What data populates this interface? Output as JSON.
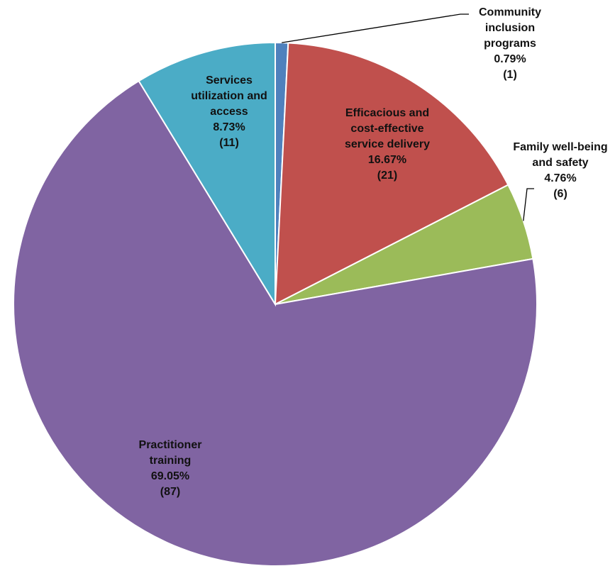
{
  "chart_data": {
    "type": "pie",
    "slices": [
      {
        "name_lines": [
          "Community",
          "inclusion",
          "programs"
        ],
        "percent": 0.79,
        "count": 1,
        "percent_label": "0.79%",
        "count_label": "(1)",
        "color": "#4F81BD"
      },
      {
        "name_lines": [
          "Efficacious and",
          "cost-effective",
          "service delivery"
        ],
        "percent": 16.67,
        "count": 21,
        "percent_label": "16.67%",
        "count_label": "(21)",
        "color": "#C0504D"
      },
      {
        "name_lines": [
          "Family well-being",
          "and safety"
        ],
        "percent": 4.76,
        "count": 6,
        "percent_label": "4.76%",
        "count_label": "(6)",
        "color": "#9BBB59"
      },
      {
        "name_lines": [
          "Practitioner",
          "training"
        ],
        "percent": 69.05,
        "count": 87,
        "percent_label": "69.05%",
        "count_label": "(87)",
        "color": "#8064A2"
      },
      {
        "name_lines": [
          "Services",
          "utilization and",
          "access"
        ],
        "percent": 8.73,
        "count": 11,
        "percent_label": "8.73%",
        "count_label": "(11)",
        "color": "#4BACC6"
      }
    ],
    "legend": "none",
    "start_angle": "12 o'clock",
    "direction": "clockwise"
  }
}
